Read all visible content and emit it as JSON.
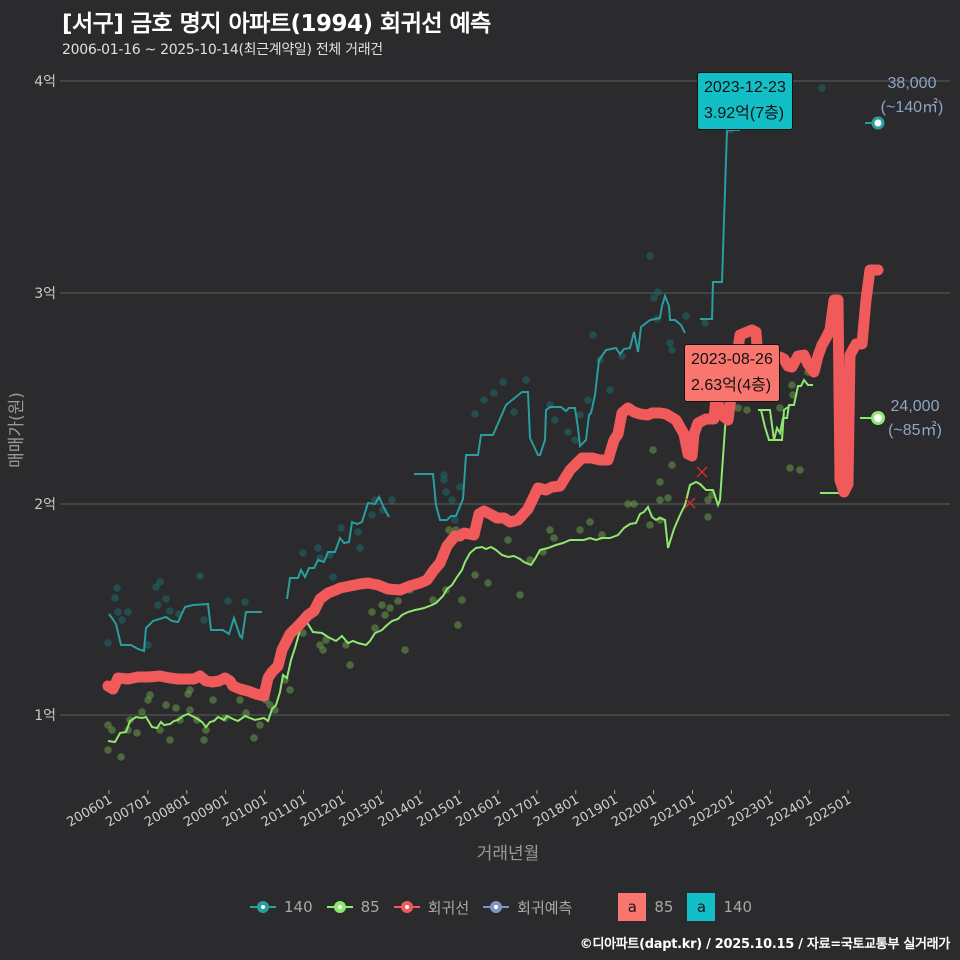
{
  "header": {
    "title": "[서구] 금호 명지 아파트(1994) 회귀선 예측",
    "subtitle": "2006-01-16 ~ 2025-10-14(최근계약일) 전체 거래건"
  },
  "axes": {
    "y_title": "매매가(원)",
    "x_title": "거래년월",
    "y_ticks": [
      "4억",
      "3억",
      "2억",
      "1억"
    ],
    "x_ticks": [
      "200601",
      "200701",
      "200801",
      "200901",
      "201001",
      "201101",
      "201201",
      "201301",
      "201401",
      "201501",
      "201601",
      "201701",
      "201801",
      "201901",
      "202001",
      "202101",
      "202201",
      "202301",
      "202401",
      "202501"
    ]
  },
  "tooltips": {
    "t140": {
      "date": "2023-12-23",
      "value": "3.92억(7층)",
      "color": "#12bfc6"
    },
    "t85": {
      "date": "2023-08-26",
      "value": "2.63억(4층)",
      "color": "#f8766d"
    }
  },
  "end_labels": {
    "e140": {
      "price": "38,000",
      "area": "(~140㎡)"
    },
    "e85": {
      "price": "24,000",
      "area": "(~85㎡)"
    }
  },
  "legend": {
    "items": [
      {
        "label": "140",
        "color": "#2a9d9f"
      },
      {
        "label": "85",
        "color": "#8ee86f"
      },
      {
        "label": "회귀선",
        "color": "#f05a5a"
      },
      {
        "label": "회귀예측",
        "color": "#7f95c2"
      }
    ],
    "boxes": [
      {
        "glyph": "a",
        "label": "85",
        "color": "#f8766d"
      },
      {
        "glyph": "a",
        "label": "140",
        "color": "#12bfc6"
      }
    ]
  },
  "footer": "©디아파트(dapt.kr) / 2025.10.15 / 자료=국토교통부 실거래가",
  "chart_data": {
    "type": "line",
    "title": "[서구] 금호 명지 아파트(1994) 회귀선 예측",
    "subtitle": "2006-01-16 ~ 2025-10-14(최근계약일) 전체 거래건",
    "xlabel": "거래년월",
    "ylabel": "매매가(원)",
    "ylim": [
      0.65,
      4.05
    ],
    "y_unit": "억",
    "grid": true,
    "legend_position": "bottom",
    "x": [
      2006.0,
      2007.0,
      2008.0,
      2009.0,
      2010.0,
      2010.5,
      2011.0,
      2012.0,
      2013.0,
      2014.0,
      2015.0,
      2016.0,
      2017.0,
      2018.0,
      2019.0,
      2019.5,
      2020.0,
      2021.0,
      2021.5,
      2022.0,
      2022.5,
      2023.0,
      2023.5,
      2024.0,
      2024.3,
      2024.6,
      2025.0,
      2025.8
    ],
    "series": [
      {
        "name": "140",
        "values": [
          1.47,
          1.4,
          1.43,
          1.54,
          1.5,
          null,
          1.6,
          1.7,
          1.95,
          2.15,
          2.0,
          2.45,
          2.52,
          2.35,
          2.7,
          2.75,
          2.85,
          2.8,
          2.87,
          3.76,
          null,
          null,
          null,
          3.92,
          null,
          null,
          null,
          3.8
        ]
      },
      {
        "name": "85",
        "values": [
          0.85,
          0.95,
          0.97,
          0.96,
          0.97,
          1.42,
          1.4,
          1.37,
          1.45,
          1.52,
          1.78,
          1.77,
          1.82,
          1.85,
          1.87,
          1.92,
          2.0,
          2.07,
          2.05,
          2.5,
          2.45,
          2.3,
          2.55,
          2.6,
          2.05,
          2.05,
          null,
          2.4
        ]
      },
      {
        "name": "회귀선",
        "values": [
          1.13,
          1.18,
          1.17,
          1.16,
          1.09,
          1.35,
          1.55,
          1.62,
          1.6,
          1.72,
          1.88,
          1.95,
          2.05,
          2.2,
          2.45,
          2.42,
          2.42,
          2.22,
          2.4,
          2.8,
          2.45,
          2.7,
          2.7,
          2.75,
          2.98,
          2.05,
          2.75,
          3.1
        ]
      },
      {
        "name": "회귀예측",
        "values": [
          null,
          null,
          null,
          null,
          null,
          null,
          null,
          null,
          null,
          null,
          null,
          null,
          null,
          null,
          null,
          null,
          null,
          null,
          null,
          null,
          null,
          null,
          null,
          null,
          null,
          null,
          null,
          3.1
        ]
      }
    ],
    "annotations": [
      {
        "text": "2023-12-23 3.92억(7층)",
        "series": "140"
      },
      {
        "text": "2023-08-26 2.63억(4층)",
        "series": "85"
      },
      {
        "text": "38,000 (~140㎡)"
      },
      {
        "text": "24,000 (~85㎡)"
      }
    ]
  }
}
